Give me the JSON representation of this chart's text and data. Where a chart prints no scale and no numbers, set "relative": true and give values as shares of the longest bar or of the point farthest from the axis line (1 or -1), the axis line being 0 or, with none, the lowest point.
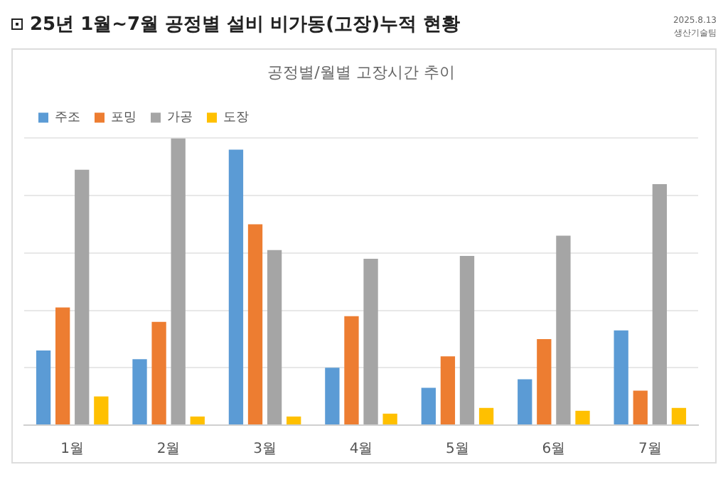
{
  "chart_data": {
    "type": "bar",
    "title": "25년 1월~7월 공정별 설비 비가동(고장)누적 현황",
    "subtitle": "공정별/월별 고장시간 추이",
    "annotations": [
      "2025.8.13",
      "생산기술팀"
    ],
    "categories": [
      "1월",
      "2월",
      "3월",
      "4월",
      "5월",
      "6월",
      "7월"
    ],
    "relative": true,
    "series": [
      {
        "name": "주조",
        "color": "#5b9bd5",
        "values": [
          0.26,
          0.23,
          0.96,
          0.2,
          0.13,
          0.16,
          0.33
        ]
      },
      {
        "name": "포밍",
        "color": "#ed7d31",
        "values": [
          0.41,
          0.36,
          0.7,
          0.38,
          0.24,
          0.3,
          0.12
        ]
      },
      {
        "name": "가공",
        "color": "#a5a5a5",
        "values": [
          0.89,
          1,
          0.61,
          0.58,
          0.59,
          0.66,
          0.84
        ]
      },
      {
        "name": "도장",
        "color": "#ffc000",
        "values": [
          0.1,
          0.03,
          0.03,
          0.04,
          0.06,
          0.05,
          0.06
        ]
      }
    ],
    "grid": "y",
    "legend": "top left"
  }
}
